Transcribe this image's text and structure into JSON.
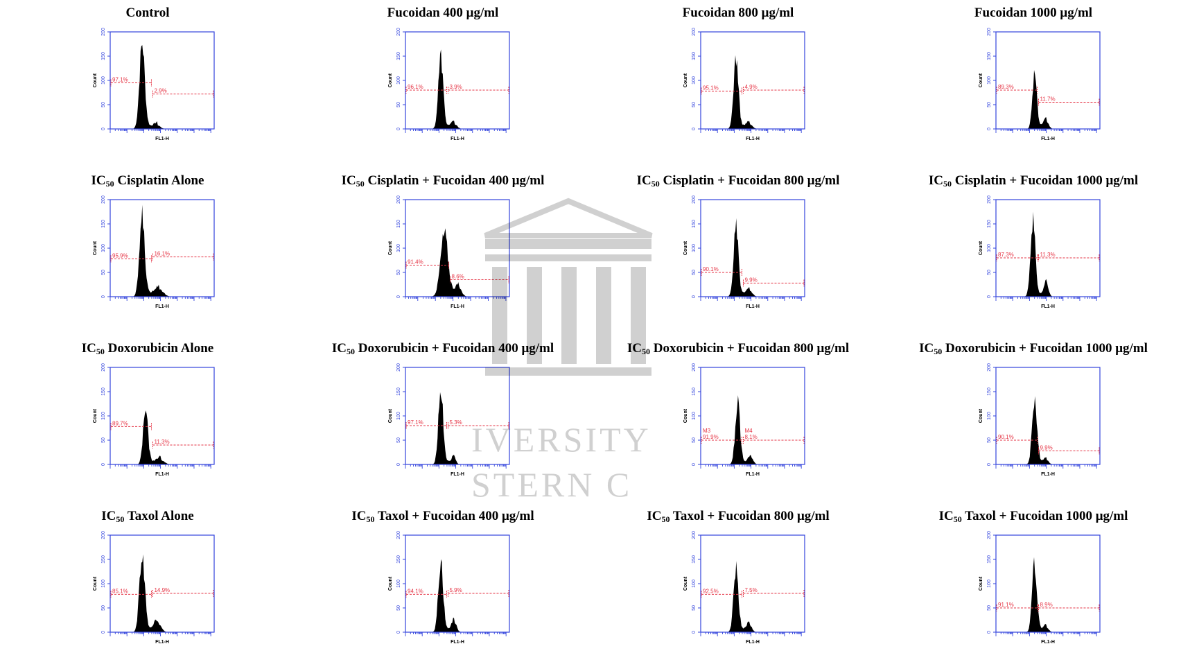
{
  "watermark": {
    "line1": "IVERSITY",
    "line2": "STERN C"
  },
  "chart_data": [
    {
      "type": "area",
      "title": "Control",
      "ylabel": "Count",
      "xlabel": "FL1-H",
      "ylim": [
        0,
        200
      ],
      "xlim": [
        1,
        7.2
      ],
      "x_scale": "log",
      "yticks": [
        0,
        50,
        100,
        150,
        200
      ],
      "gates": [
        {
          "label": "97.1%",
          "level": 95,
          "range": [
            1,
            3.5
          ]
        },
        {
          "label": "2.9%",
          "level": 72,
          "range": [
            3.5,
            7.2
          ]
        }
      ],
      "peaks": [
        {
          "x": 2.9,
          "height": 172,
          "width": 0.22
        },
        {
          "x": 3.8,
          "height": 8,
          "width": 0.25
        }
      ]
    },
    {
      "type": "area",
      "title": "Fucoidan 400 μg/ml",
      "ylabel": "Count",
      "xlabel": "FL1-H",
      "ylim": [
        0,
        200
      ],
      "xlim": [
        1,
        7.2
      ],
      "x_scale": "log",
      "yticks": [
        0,
        50,
        100,
        150,
        200
      ],
      "gates": [
        {
          "label": "96.1%",
          "level": 80,
          "range": [
            1,
            3.5
          ]
        },
        {
          "label": "3.9%",
          "level": 80,
          "range": [
            3.5,
            7.2
          ]
        }
      ],
      "peaks": [
        {
          "x": 3.1,
          "height": 145,
          "width": 0.2
        },
        {
          "x": 3.9,
          "height": 10,
          "width": 0.25
        }
      ]
    },
    {
      "type": "area",
      "title": "Fucoidan 800 μg/ml",
      "ylabel": "Count",
      "xlabel": "FL1-H",
      "ylim": [
        0,
        200
      ],
      "xlim": [
        1,
        7.2
      ],
      "x_scale": "log",
      "yticks": [
        0,
        50,
        100,
        150,
        200
      ],
      "gates": [
        {
          "label": "95.1%",
          "level": 78,
          "range": [
            1,
            3.5
          ]
        },
        {
          "label": "4.9%",
          "level": 80,
          "range": [
            3.5,
            7.2
          ]
        }
      ],
      "peaks": [
        {
          "x": 3.1,
          "height": 145,
          "width": 0.2
        },
        {
          "x": 3.9,
          "height": 10,
          "width": 0.25
        }
      ]
    },
    {
      "type": "area",
      "title": "Fucoidan 1000 μg/ml",
      "ylabel": "Count",
      "xlabel": "FL1-H",
      "ylim": [
        0,
        200
      ],
      "xlim": [
        1,
        7.2
      ],
      "x_scale": "log",
      "yticks": [
        0,
        50,
        100,
        150,
        200
      ],
      "gates": [
        {
          "label": "89.3%",
          "level": 80,
          "range": [
            1,
            3.5
          ]
        },
        {
          "label": "11.7%",
          "level": 55,
          "range": [
            3.5,
            7.2
          ]
        }
      ],
      "peaks": [
        {
          "x": 3.3,
          "height": 117,
          "width": 0.18
        },
        {
          "x": 4.0,
          "height": 16,
          "width": 0.2
        }
      ]
    },
    {
      "type": "area",
      "title": "Cisplatin Alone",
      "title_prefix": "IC",
      "title_sub": "50",
      "ylabel": "Count",
      "xlabel": "FL1-H",
      "ylim": [
        0,
        200
      ],
      "xlim": [
        1,
        7.2
      ],
      "x_scale": "log",
      "yticks": [
        0,
        50,
        100,
        150,
        200
      ],
      "gates": [
        {
          "label": "95.9%",
          "level": 78,
          "range": [
            1,
            3.5
          ]
        },
        {
          "label": "16.1%",
          "level": 82,
          "range": [
            3.5,
            7.2
          ]
        }
      ],
      "peaks": [
        {
          "x": 2.9,
          "height": 160,
          "width": 0.22
        },
        {
          "x": 3.9,
          "height": 17,
          "width": 0.35
        }
      ]
    },
    {
      "type": "area",
      "title": "Cisplatin + Fucoidan 400 μg/ml",
      "title_prefix": "IC",
      "title_sub": "50",
      "ylabel": "Count",
      "xlabel": "FL1-H",
      "ylim": [
        0,
        200
      ],
      "xlim": [
        1.3,
        7.2
      ],
      "x_scale": "log",
      "yticks": [
        0,
        50,
        100,
        150,
        200
      ],
      "gates": [
        {
          "label": "91.4%",
          "level": 65,
          "range": [
            1.3,
            3.8
          ]
        },
        {
          "label": "8.6%",
          "level": 35,
          "range": [
            3.8,
            7.2
          ]
        }
      ],
      "peaks": [
        {
          "x": 3.5,
          "height": 125,
          "width": 0.3
        },
        {
          "x": 4.3,
          "height": 20,
          "width": 0.25
        }
      ]
    },
    {
      "type": "area",
      "title": "Cisplatin + Fucoidan 800 μg/ml",
      "title_prefix": "IC",
      "title_sub": "50",
      "ylabel": "Count",
      "xlabel": "FL1-H",
      "ylim": [
        0,
        200
      ],
      "xlim": [
        1,
        7.2
      ],
      "x_scale": "log",
      "yticks": [
        0,
        50,
        100,
        150,
        200
      ],
      "gates": [
        {
          "label": "90.1%",
          "level": 50,
          "range": [
            1,
            3.5
          ]
        },
        {
          "label": "9.9%",
          "level": 28,
          "range": [
            3.5,
            7.2
          ]
        }
      ],
      "peaks": [
        {
          "x": 3.1,
          "height": 138,
          "width": 0.2
        },
        {
          "x": 3.9,
          "height": 12,
          "width": 0.25
        }
      ]
    },
    {
      "type": "area",
      "title": "Cisplatin + Fucoidan 1000 μg/ml",
      "title_prefix": "IC",
      "title_sub": "50",
      "ylabel": "Count",
      "xlabel": "FL1-H",
      "ylim": [
        0,
        200
      ],
      "xlim": [
        1,
        7.2
      ],
      "x_scale": "log",
      "yticks": [
        0,
        50,
        100,
        150,
        200
      ],
      "gates": [
        {
          "label": "87.3%",
          "level": 80,
          "range": [
            1,
            3.5
          ]
        },
        {
          "label": "11.3%",
          "level": 80,
          "range": [
            3.5,
            7.2
          ]
        }
      ],
      "peaks": [
        {
          "x": 3.2,
          "height": 152,
          "width": 0.2
        },
        {
          "x": 4.0,
          "height": 28,
          "width": 0.18
        }
      ]
    },
    {
      "type": "area",
      "title": "Doxorubicin Alone",
      "title_prefix": "IC",
      "title_sub": "50",
      "ylabel": "Count",
      "xlabel": "FL1-H",
      "ylim": [
        0,
        200
      ],
      "xlim": [
        1,
        7.2
      ],
      "x_scale": "log",
      "yticks": [
        0,
        50,
        100,
        150,
        200
      ],
      "gates": [
        {
          "label": "89.7%",
          "level": 78,
          "range": [
            1,
            3.5
          ]
        },
        {
          "label": "11.3%",
          "level": 40,
          "range": [
            3.5,
            7.2
          ]
        }
      ],
      "peaks": [
        {
          "x": 3.1,
          "height": 110,
          "width": 0.2
        },
        {
          "x": 4.0,
          "height": 10,
          "width": 0.3
        }
      ]
    },
    {
      "type": "area",
      "title": "Doxorubicin + Fucoidan 400 μg/ml",
      "title_prefix": "IC",
      "title_sub": "50",
      "ylabel": "Count",
      "xlabel": "FL1-H",
      "ylim": [
        0,
        200
      ],
      "xlim": [
        1,
        7.2
      ],
      "x_scale": "log",
      "yticks": [
        0,
        50,
        100,
        150,
        200
      ],
      "gates": [
        {
          "label": "97.1%",
          "level": 80,
          "range": [
            1,
            3.5
          ]
        },
        {
          "label": "5.3%",
          "level": 80,
          "range": [
            3.5,
            7.2
          ]
        }
      ],
      "peaks": [
        {
          "x": 3.1,
          "height": 148,
          "width": 0.2
        },
        {
          "x": 3.9,
          "height": 16,
          "width": 0.15
        }
      ]
    },
    {
      "type": "area",
      "title": "Doxorubicin + Fucoidan 800 μg/ml",
      "title_prefix": "IC",
      "title_sub": "50",
      "ylabel": "Count",
      "xlabel": "FL1-H",
      "ylim": [
        0,
        200
      ],
      "xlim": [
        1,
        7.2
      ],
      "x_scale": "log",
      "yticks": [
        0,
        50,
        100,
        150,
        200
      ],
      "gates": [
        {
          "label": "91.9%",
          "name": "M3",
          "level": 50,
          "range": [
            1,
            3.5
          ]
        },
        {
          "label": "8.1%",
          "name": "M4",
          "level": 50,
          "range": [
            3.5,
            7.2
          ]
        }
      ],
      "peaks": [
        {
          "x": 3.2,
          "height": 125,
          "width": 0.2
        },
        {
          "x": 4.0,
          "height": 14,
          "width": 0.2
        }
      ]
    },
    {
      "type": "area",
      "title": "Doxorubicin + Fucoidan 1000 μg/ml",
      "title_prefix": "IC",
      "title_sub": "50",
      "ylabel": "Count",
      "xlabel": "FL1-H",
      "ylim": [
        0,
        200
      ],
      "xlim": [
        1,
        7.2
      ],
      "x_scale": "log",
      "yticks": [
        0,
        50,
        100,
        150,
        200
      ],
      "gates": [
        {
          "label": "90.1%",
          "level": 50,
          "range": [
            1,
            3.5
          ]
        },
        {
          "label": "9.9%",
          "level": 28,
          "range": [
            3.5,
            7.2
          ]
        }
      ],
      "peaks": [
        {
          "x": 3.3,
          "height": 138,
          "width": 0.2
        },
        {
          "x": 4.0,
          "height": 10,
          "width": 0.2
        }
      ]
    },
    {
      "type": "area",
      "title": "Taxol Alone",
      "title_prefix": "IC",
      "title_sub": "50",
      "ylabel": "Count",
      "xlabel": "FL1-H",
      "ylim": [
        0,
        200
      ],
      "xlim": [
        1,
        7.2
      ],
      "x_scale": "log",
      "yticks": [
        0,
        50,
        100,
        150,
        200
      ],
      "gates": [
        {
          "label": "85.1%",
          "level": 78,
          "range": [
            1,
            3.5
          ]
        },
        {
          "label": "14.9%",
          "level": 80,
          "range": [
            3.5,
            7.2
          ]
        }
      ],
      "peaks": [
        {
          "x": 2.9,
          "height": 158,
          "width": 0.22
        },
        {
          "x": 3.8,
          "height": 20,
          "width": 0.3
        }
      ]
    },
    {
      "type": "area",
      "title": "Taxol + Fucoidan 400 μg/ml",
      "title_prefix": "IC",
      "title_sub": "50",
      "ylabel": "Count",
      "xlabel": "FL1-H",
      "ylim": [
        0,
        200
      ],
      "xlim": [
        1,
        7.2
      ],
      "x_scale": "log",
      "yticks": [
        0,
        50,
        100,
        150,
        200
      ],
      "gates": [
        {
          "label": "94.1%",
          "level": 78,
          "range": [
            1,
            3.5
          ]
        },
        {
          "label": "5.9%",
          "level": 80,
          "range": [
            3.5,
            7.2
          ]
        }
      ],
      "peaks": [
        {
          "x": 3.1,
          "height": 145,
          "width": 0.2
        },
        {
          "x": 3.9,
          "height": 22,
          "width": 0.2
        }
      ]
    },
    {
      "type": "area",
      "title": "Taxol + Fucoidan 800 μg/ml",
      "title_prefix": "IC",
      "title_sub": "50",
      "ylabel": "Count",
      "xlabel": "FL1-H",
      "ylim": [
        0,
        200
      ],
      "xlim": [
        1,
        7.2
      ],
      "x_scale": "log",
      "yticks": [
        0,
        50,
        100,
        150,
        200
      ],
      "gates": [
        {
          "label": "92.5%",
          "level": 78,
          "range": [
            1,
            3.5
          ]
        },
        {
          "label": "7.5%",
          "level": 80,
          "range": [
            3.5,
            7.2
          ]
        }
      ],
      "peaks": [
        {
          "x": 3.1,
          "height": 132,
          "width": 0.2
        },
        {
          "x": 3.9,
          "height": 16,
          "width": 0.2
        }
      ]
    },
    {
      "type": "area",
      "title": "Taxol + Fucoidan 1000 μg/ml",
      "title_prefix": "IC",
      "title_sub": "50",
      "ylabel": "Count",
      "xlabel": "FL1-H",
      "ylim": [
        0,
        200
      ],
      "xlim": [
        1,
        7.2
      ],
      "x_scale": "log",
      "yticks": [
        0,
        50,
        100,
        150,
        200
      ],
      "gates": [
        {
          "label": "91.1%",
          "level": 50,
          "range": [
            1,
            3.5
          ]
        },
        {
          "label": "8.9%",
          "level": 50,
          "range": [
            3.5,
            7.2
          ]
        }
      ],
      "peaks": [
        {
          "x": 3.3,
          "height": 138,
          "width": 0.2
        },
        {
          "x": 4.0,
          "height": 10,
          "width": 0.2
        }
      ]
    }
  ]
}
